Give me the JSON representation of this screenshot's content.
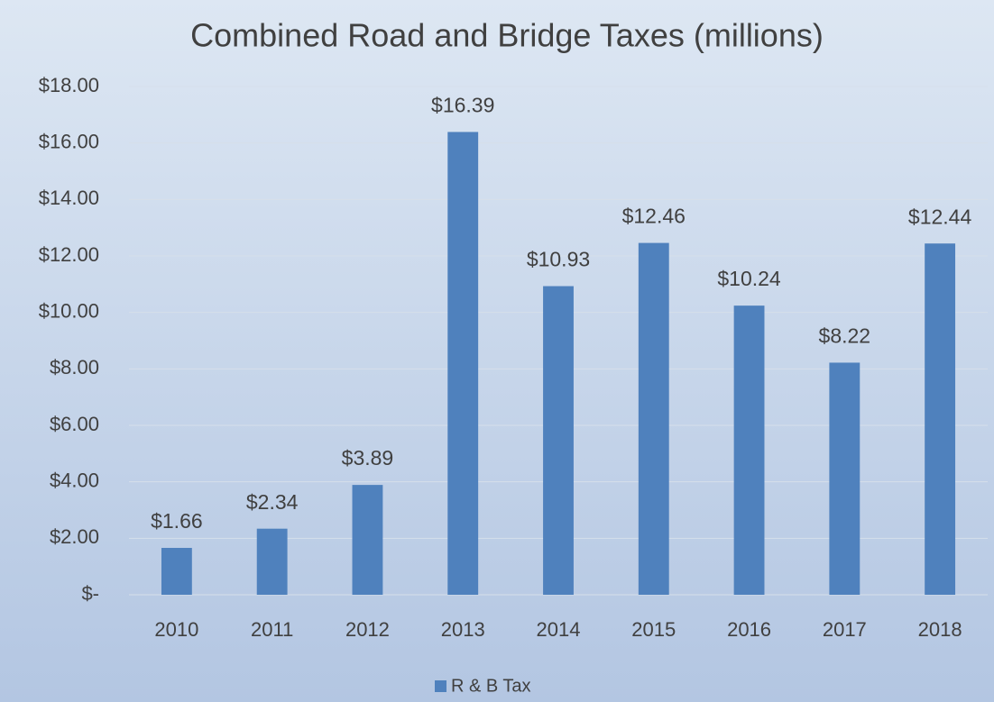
{
  "chart_data": {
    "type": "bar",
    "title": "Combined Road and Bridge Taxes (millions)",
    "categories": [
      "2010",
      "2011",
      "2012",
      "2013",
      "2014",
      "2015",
      "2016",
      "2017",
      "2018"
    ],
    "series": [
      {
        "name": "R & B Tax",
        "color": "#4f81bd",
        "values": [
          1.66,
          2.34,
          3.89,
          16.39,
          10.93,
          12.46,
          10.24,
          8.22,
          12.44
        ],
        "value_labels": [
          "$1.66",
          "$2.34",
          "$3.89",
          "$16.39",
          "$10.93",
          "$12.46",
          "$10.24",
          "$8.22",
          "$12.44"
        ]
      }
    ],
    "ylim": [
      0,
      18
    ],
    "yticks": [
      {
        "value": 0,
        "label": "$-"
      },
      {
        "value": 2,
        "label": "$2.00"
      },
      {
        "value": 4,
        "label": "$4.00"
      },
      {
        "value": 6,
        "label": "$6.00"
      },
      {
        "value": 8,
        "label": "$8.00"
      },
      {
        "value": 10,
        "label": "$10.00"
      },
      {
        "value": 12,
        "label": "$12.00"
      },
      {
        "value": 14,
        "label": "$14.00"
      },
      {
        "value": 16,
        "label": "$16.00"
      },
      {
        "value": 18,
        "label": "$18.00"
      }
    ],
    "grid": true,
    "legend": "bottom"
  }
}
